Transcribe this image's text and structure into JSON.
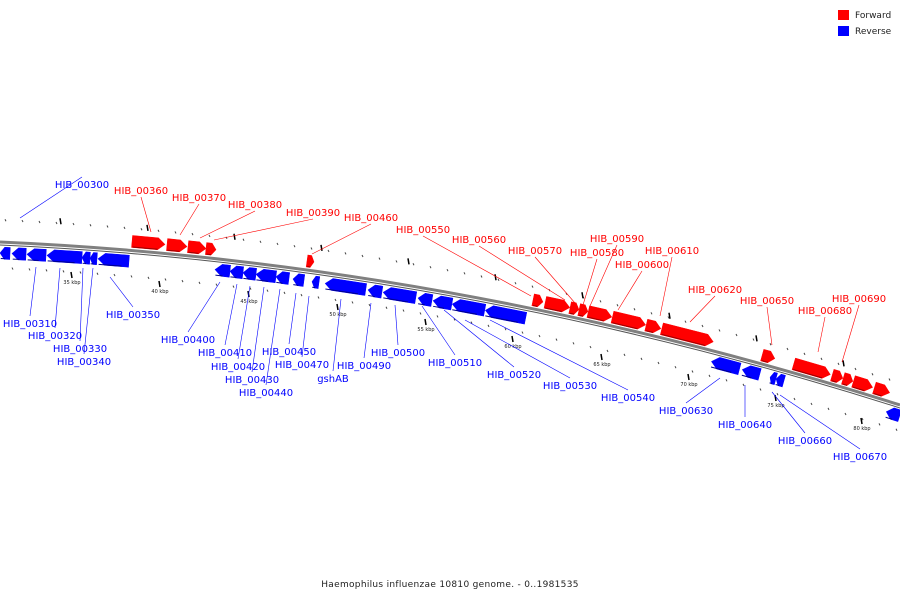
{
  "caption": "Haemophilus influenzae 10810 genome. - 0..1981535",
  "legend": [
    {
      "label": "Forward",
      "color": "#ff0000"
    },
    {
      "label": "Reverse",
      "color": "#0000ff"
    }
  ],
  "colors": {
    "forward": "#ff0000",
    "reverse": "#0000ff",
    "backbone": "#808080"
  },
  "scale_labels": [
    "35 kbp",
    "40 kbp",
    "45 kbp",
    "50 kbp",
    "55 kbp",
    "60 kbp",
    "65 kbp",
    "70 kbp",
    "75 kbp",
    "80 kbp"
  ],
  "forward_genes": [
    "HIB_00360",
    "HIB_00370",
    "HIB_00380",
    "HIB_00390",
    "HIB_00460",
    "HIB_00550",
    "HIB_00560",
    "HIB_00570",
    "HIB_00580",
    "HIB_00590",
    "HIB_00600",
    "HIB_00610",
    "HIB_00620",
    "HIB_00650",
    "HIB_00680",
    "HIB_00690"
  ],
  "reverse_genes": [
    "HIB_00300",
    "HIB_00310",
    "HIB_00320",
    "HIB_00330",
    "HIB_00340",
    "HIB_00350",
    "HIB_00400",
    "HIB_00410",
    "HIB_00420",
    "HIB_00430",
    "HIB_00440",
    "HIB_00450",
    "HIB_00470",
    "gshAB",
    "HIB_00490",
    "HIB_00500",
    "HIB_00510",
    "HIB_00520",
    "HIB_00530",
    "HIB_00540",
    "HIB_00630",
    "HIB_00640",
    "HIB_00660",
    "HIB_00670"
  ]
}
